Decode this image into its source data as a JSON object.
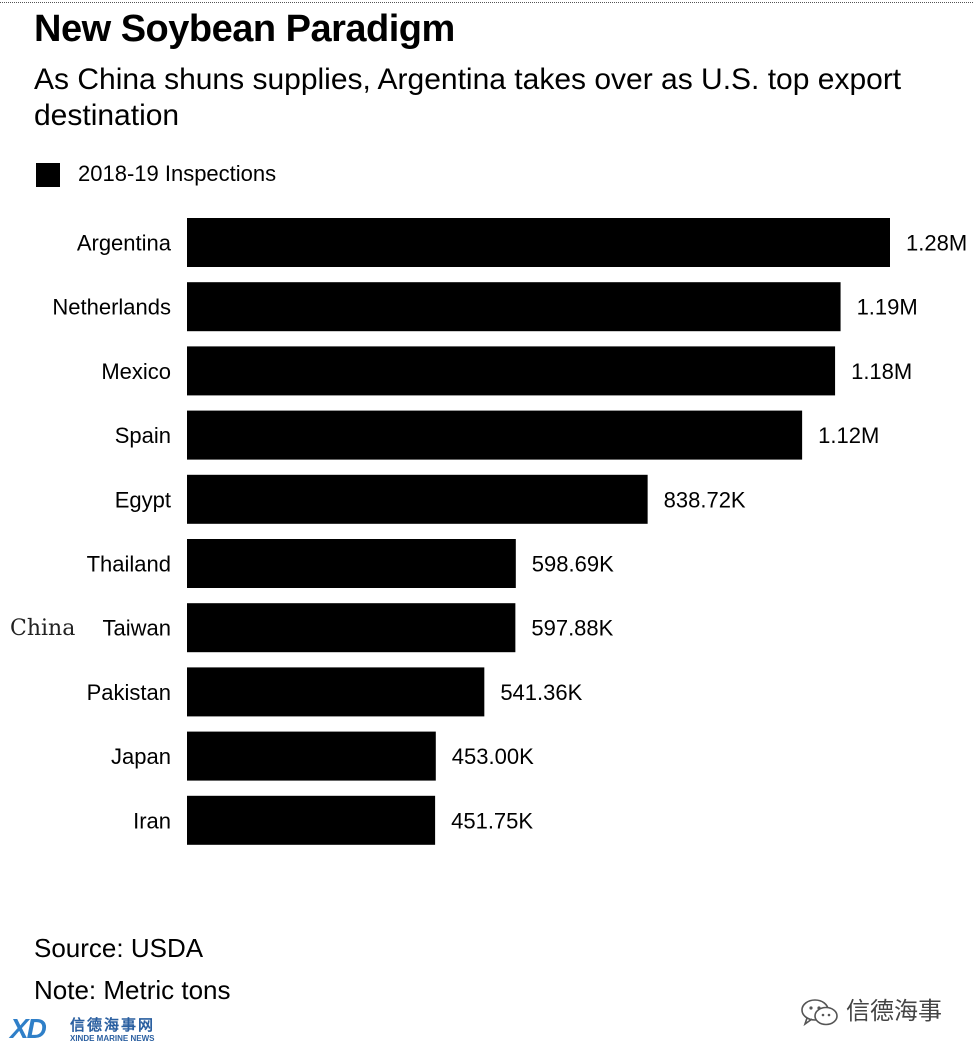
{
  "title": "New Soybean Paradigm",
  "subtitle": "As China shuns supplies, Argentina takes over as U.S. top export destination",
  "legend": {
    "label": "2018-19 Inspections",
    "color": "#000000"
  },
  "chart_data": {
    "type": "bar",
    "orientation": "horizontal",
    "categories": [
      "Argentina",
      "Netherlands",
      "Mexico",
      "Spain",
      "Egypt",
      "Thailand",
      "Taiwan",
      "Pakistan",
      "Japan",
      "Iran"
    ],
    "series": [
      {
        "name": "2018-19 Inspections",
        "color": "#000000",
        "values": [
          1280000,
          1190000,
          1180000,
          1120000,
          838720,
          598690,
          597880,
          541360,
          453000,
          451750
        ],
        "labels": [
          "1.28M",
          "1.19M",
          "1.18M",
          "1.12M",
          "838.72K",
          "598.69K",
          "597.88K",
          "541.36K",
          "453.00K",
          "451.75K"
        ]
      }
    ],
    "xlim": [
      0,
      1280000
    ],
    "grid": false,
    "legend_position": "top-left"
  },
  "annotation": "China",
  "footer": {
    "source": "Source: USDA",
    "note": "Note: Metric tons"
  },
  "watermarks": {
    "left_logo": "XD",
    "left_cn": "信德海事网",
    "left_en": "XINDE MARINE NEWS",
    "right_text": "信德海事",
    "right_icon": "wechat-icon"
  }
}
